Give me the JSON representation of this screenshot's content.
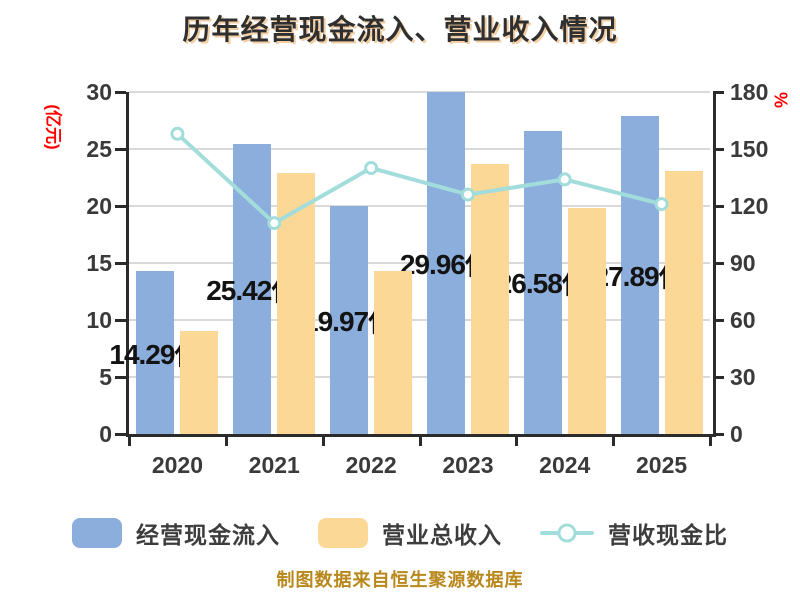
{
  "title": "历年经营现金流入、营业收入情况",
  "footer": "制图数据来自恒生聚源数据库",
  "left_axis_unit": "(亿元)",
  "right_axis_unit": "%",
  "legend": {
    "items": [
      {
        "label": "经营现金流入",
        "swatch": "blue-rect"
      },
      {
        "label": "营业总收入",
        "swatch": "orange-rect"
      },
      {
        "label": "营收现金比",
        "swatch": "line-marker"
      }
    ]
  },
  "colors": {
    "bar_blue": "#8caedc",
    "bar_orange": "#fcd896",
    "line_cyan": "#a3dddb",
    "marker_fill": "#ffffff",
    "grid": "#d9d9d9",
    "axis": "#2b2b2b",
    "axis_text": "#3a3a3a",
    "unit_text": "#ff0000",
    "value_text": "#131313",
    "footer_text": "#b8881d"
  },
  "chart_data": {
    "type": "bar",
    "subtype": "grouped bars + line overlay (dual axis)",
    "title": "历年经营现金流入、营业收入情况",
    "categories": [
      "2020",
      "2021",
      "2022",
      "2023",
      "2024",
      "2025"
    ],
    "series": [
      {
        "name": "经营现金流入",
        "type": "bar",
        "axis": "left",
        "values": [
          14.29,
          25.42,
          19.97,
          29.96,
          26.58,
          27.89
        ],
        "data_labels": [
          "14.29亿",
          "25.42亿",
          "19.97亿",
          "29.96亿",
          "26.58亿",
          "27.89亿"
        ],
        "color": "#8caedc"
      },
      {
        "name": "营业总收入",
        "type": "bar",
        "axis": "left",
        "values": [
          9.0,
          22.9,
          14.3,
          23.7,
          19.8,
          23.1
        ],
        "color": "#fcd896"
      },
      {
        "name": "营收现金比",
        "type": "line",
        "axis": "right",
        "values": [
          158,
          111,
          140,
          126,
          134,
          121
        ],
        "color": "#a3dddb",
        "marker": "circle-white-fill"
      }
    ],
    "left_axis": {
      "unit": "(亿元)",
      "min": 0,
      "max": 30,
      "step": 5,
      "ticks": [
        0,
        5,
        10,
        15,
        20,
        25,
        30
      ]
    },
    "right_axis": {
      "unit": "%",
      "min": 0,
      "max": 180,
      "step": 30,
      "ticks": [
        0,
        30,
        60,
        90,
        120,
        150,
        180
      ]
    },
    "grid": true,
    "legend_position": "bottom"
  }
}
